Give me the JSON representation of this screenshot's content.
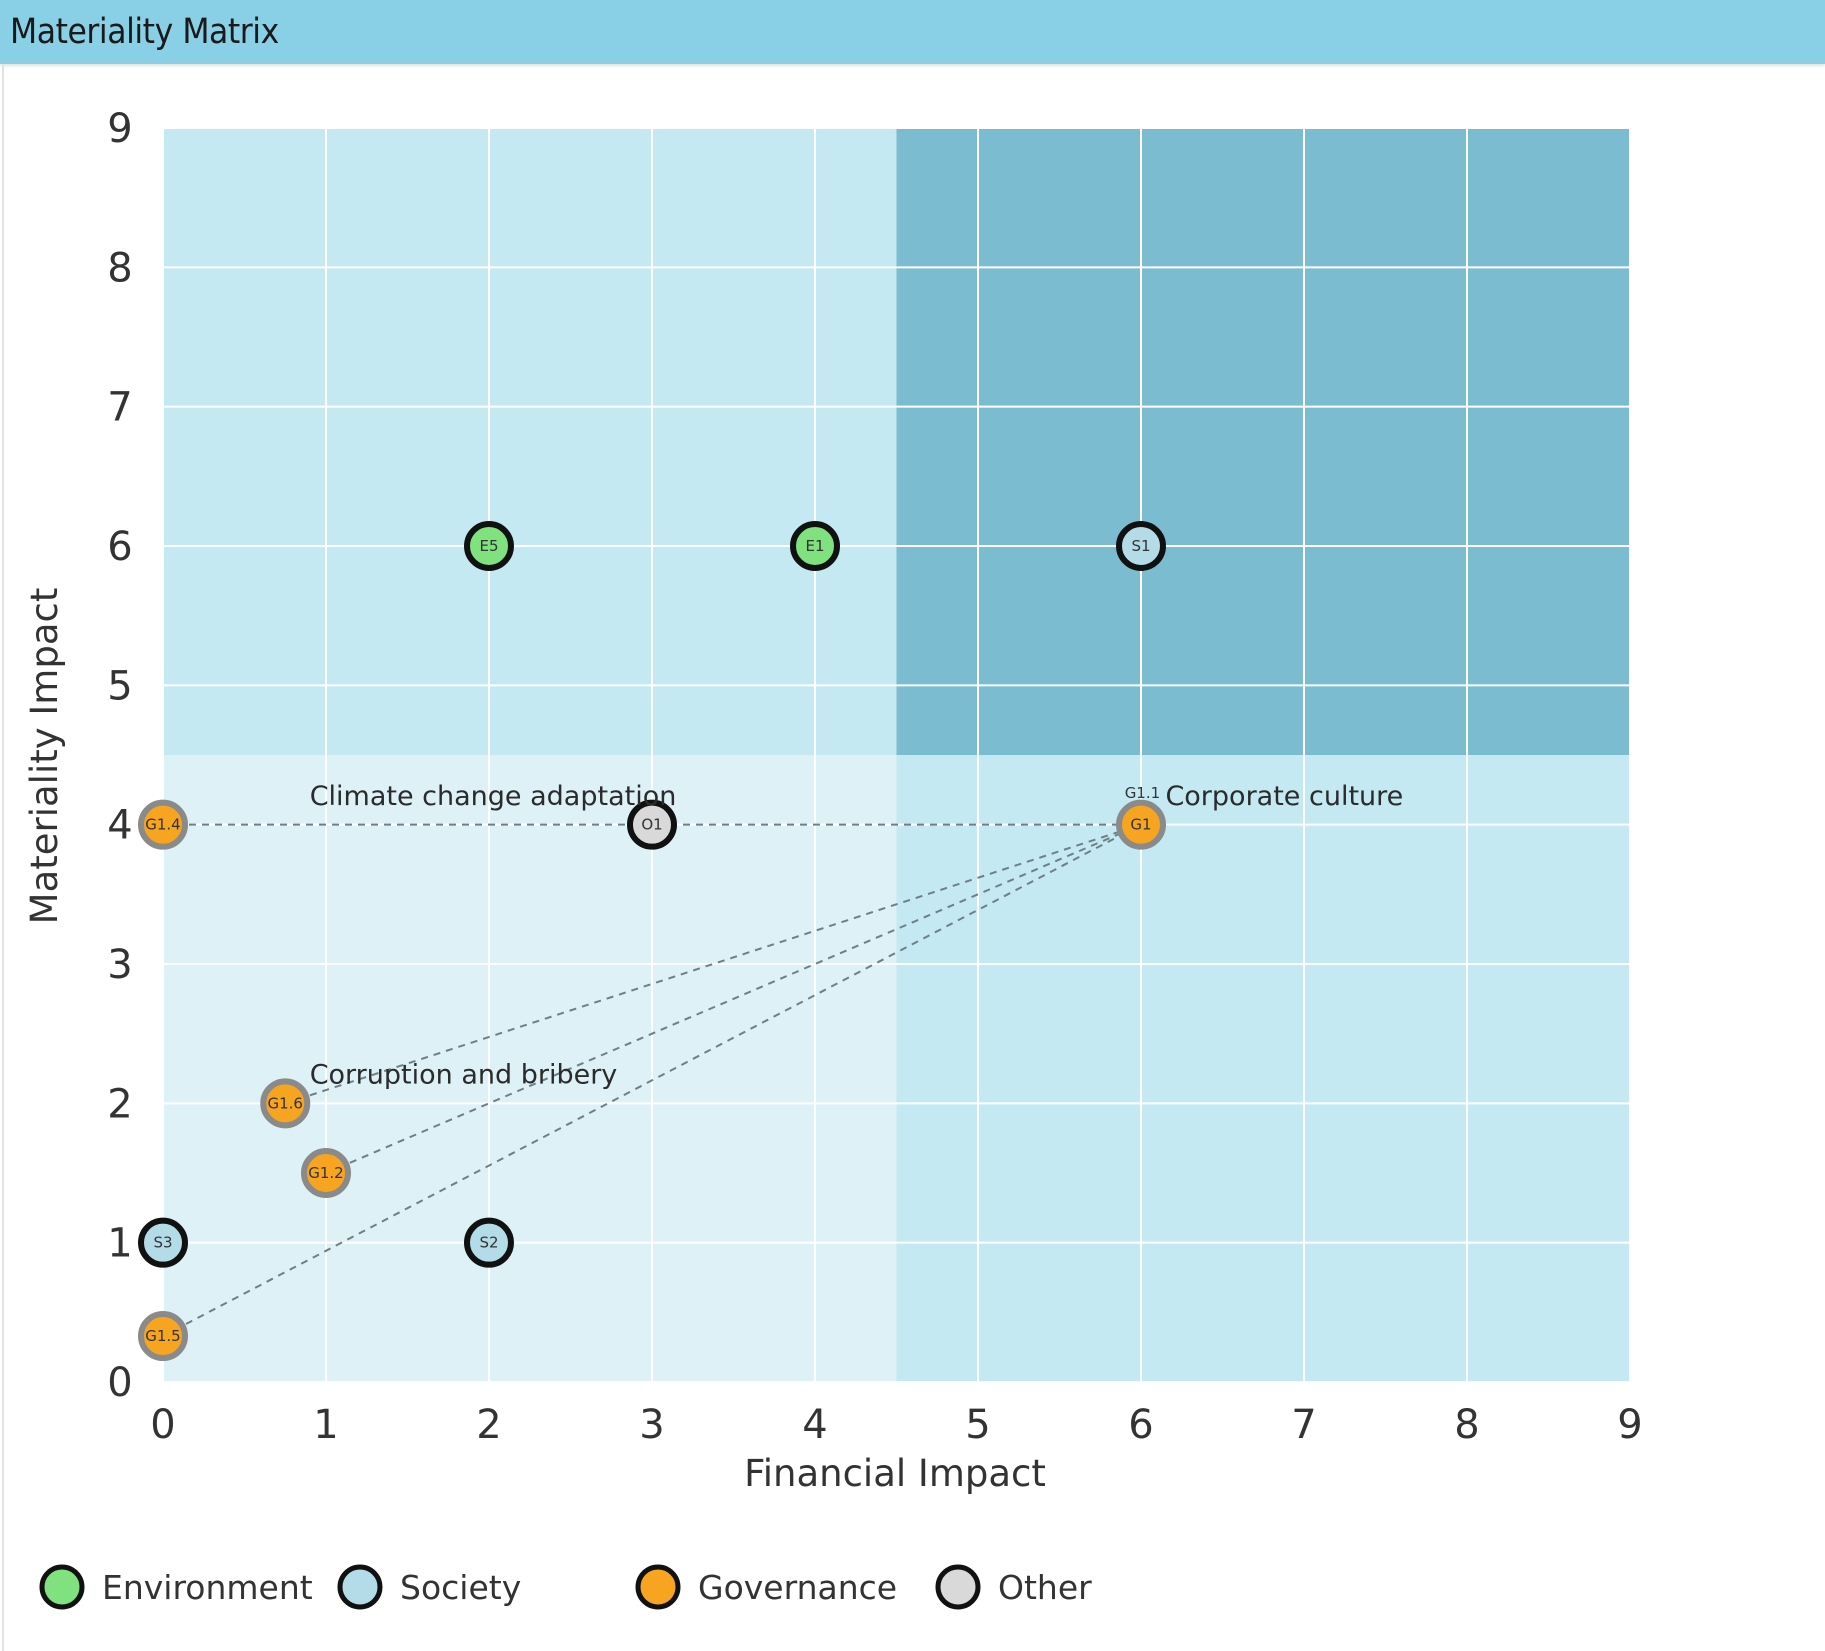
{
  "header": {
    "title": "Materiality Matrix"
  },
  "chart_data": {
    "type": "scatter",
    "title": "Materiality Matrix",
    "xlabel": "Financial Impact",
    "ylabel": "Materiality Impact",
    "xlim": [
      0,
      9
    ],
    "ylim": [
      0,
      9
    ],
    "xticks": [
      0,
      1,
      2,
      3,
      4,
      5,
      6,
      7,
      8,
      9
    ],
    "yticks": [
      0,
      1,
      2,
      3,
      4,
      5,
      6,
      7,
      8,
      9
    ],
    "threshold": {
      "x": 4.5,
      "y": 4.5
    },
    "colors": {
      "outer": "#ddf1f7",
      "quadrant": "#c4e9f2",
      "critical": "#7bbcd0",
      "grid": "#ffffff",
      "link": "#6f7f86"
    },
    "categories": [
      {
        "name": "Environment",
        "color": "#7fe27f"
      },
      {
        "name": "Society",
        "color": "#b4dbe8"
      },
      {
        "name": "Governance",
        "color": "#f7a520"
      },
      {
        "name": "Other",
        "color": "#d9d9d9"
      }
    ],
    "points": [
      {
        "id": "E5",
        "x": 2,
        "y": 6,
        "category": "Environment",
        "outline": "#111111"
      },
      {
        "id": "E1",
        "x": 4,
        "y": 6,
        "category": "Environment",
        "outline": "#111111"
      },
      {
        "id": "S1",
        "x": 6,
        "y": 6,
        "category": "Society",
        "outline": "#111111"
      },
      {
        "id": "G1.4",
        "x": 0,
        "y": 4,
        "category": "Governance",
        "outline": "#8a8a8a"
      },
      {
        "id": "O1",
        "x": 3,
        "y": 4,
        "category": "Other",
        "outline": "#111111"
      },
      {
        "id": "G1",
        "x": 6,
        "y": 4,
        "category": "Governance",
        "outline": "#8a8a8a"
      },
      {
        "id": "G1.6",
        "x": 0.75,
        "y": 2,
        "category": "Governance",
        "outline": "#8a8a8a"
      },
      {
        "id": "G1.2",
        "x": 1,
        "y": 1.5,
        "category": "Governance",
        "outline": "#8a8a8a"
      },
      {
        "id": "S3",
        "x": 0,
        "y": 1,
        "category": "Society",
        "outline": "#111111"
      },
      {
        "id": "S2",
        "x": 2,
        "y": 1,
        "category": "Society",
        "outline": "#111111"
      },
      {
        "id": "G1.5",
        "x": 0,
        "y": 0.33,
        "category": "Governance",
        "outline": "#8a8a8a"
      }
    ],
    "links": [
      {
        "from": "G1.4",
        "to": "G1"
      },
      {
        "from": "G1.6",
        "to": "G1"
      },
      {
        "from": "G1.2",
        "to": "G1"
      },
      {
        "from": "G1.5",
        "to": "G1"
      }
    ],
    "annotations": [
      {
        "text": "Climate change adaptation",
        "x": 0.9,
        "y": 4.2
      },
      {
        "text": "Corporate culture",
        "x": 6.15,
        "y": 4.2
      },
      {
        "text": "G1.1",
        "x": 5.9,
        "y": 4.25
      },
      {
        "text": "Corruption and bribery",
        "x": 0.9,
        "y": 2.2
      }
    ]
  }
}
